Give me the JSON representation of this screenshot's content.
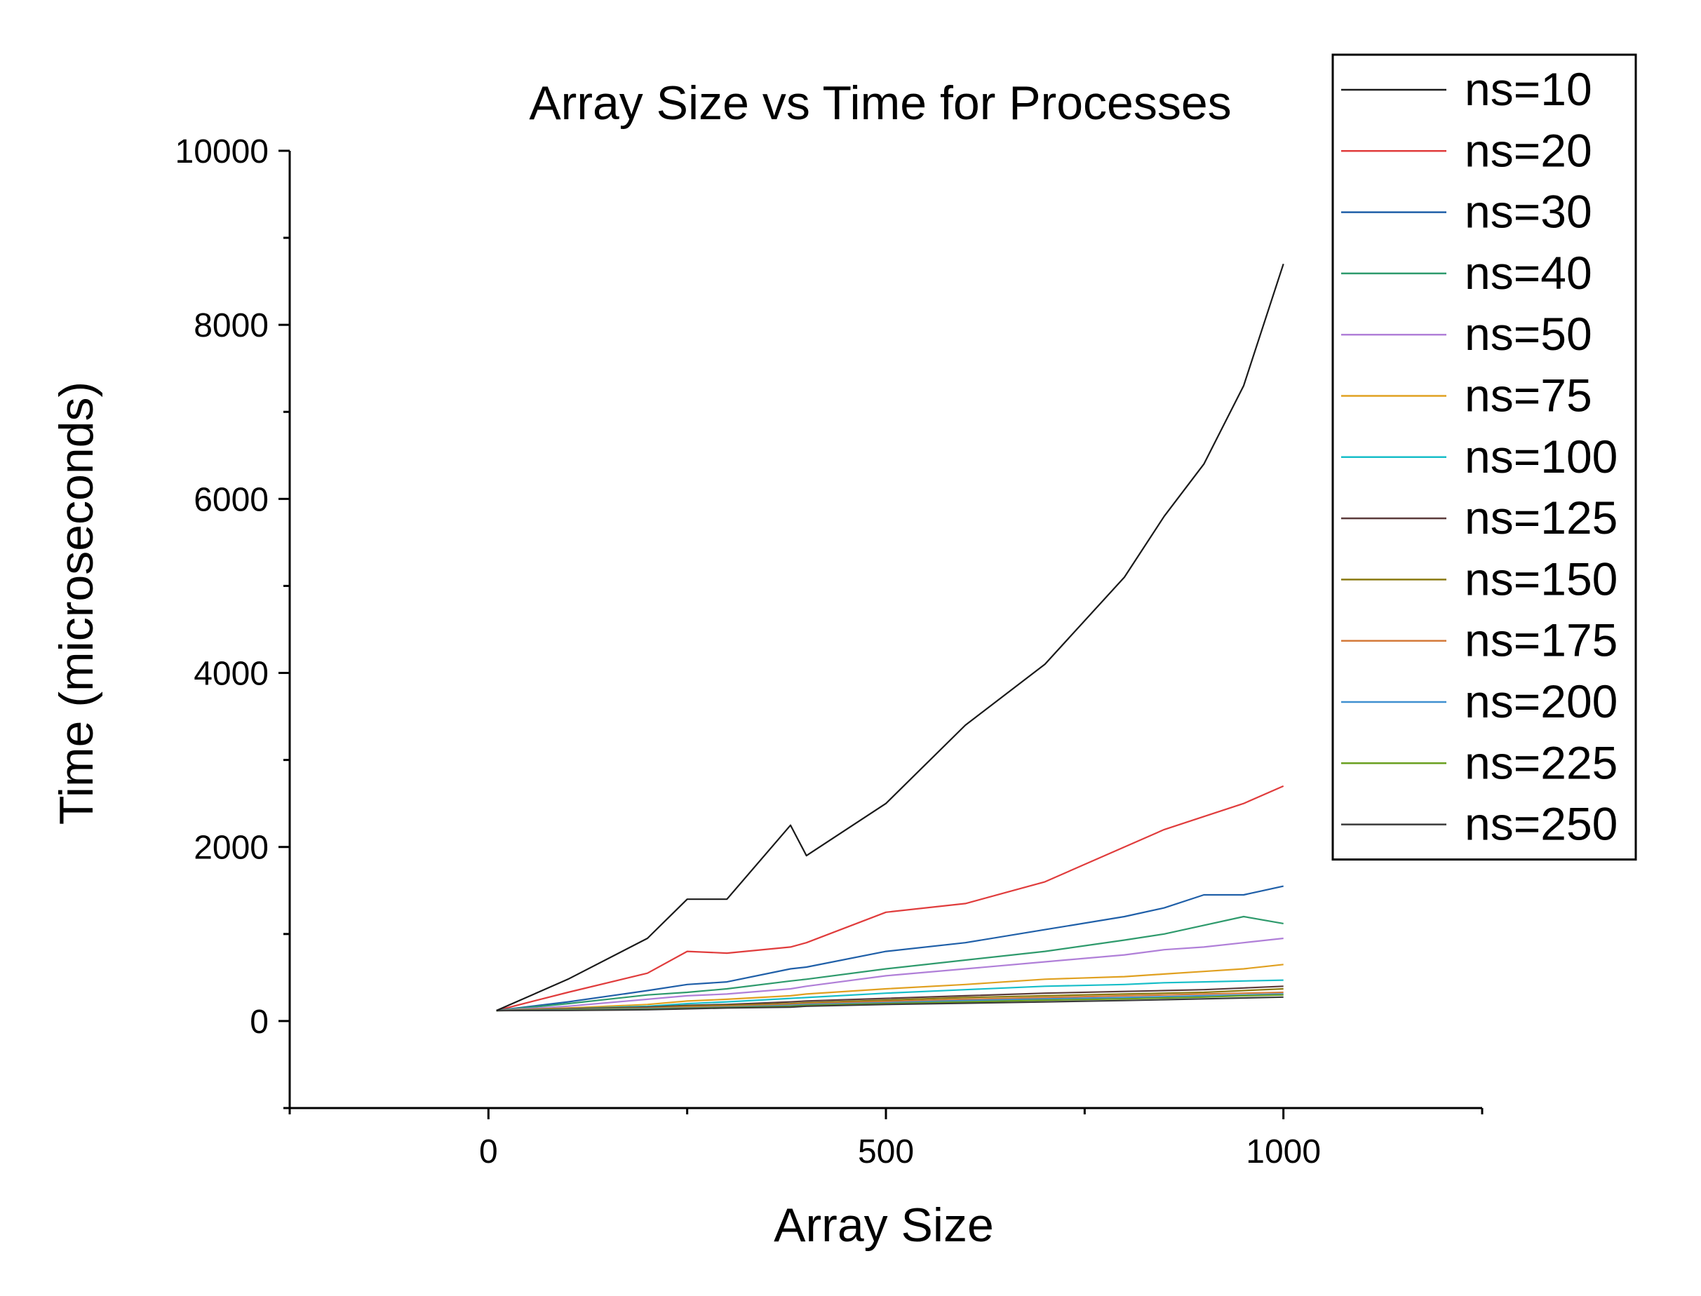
{
  "chart_data": {
    "type": "line",
    "title": "Array Size vs Time for Processes",
    "xlabel": "Array Size",
    "ylabel": "Time (microseconds)",
    "xlim": [
      -250,
      1250
    ],
    "ylim": [
      -1000,
      10000
    ],
    "xticks": [
      0,
      500,
      1000
    ],
    "xtick_labels": [
      "0",
      "500",
      "1000"
    ],
    "yticks": [
      0,
      2000,
      4000,
      6000,
      8000,
      10000
    ],
    "ytick_labels": [
      "0",
      "2000",
      "4000",
      "6000",
      "8000",
      "10000"
    ],
    "grid": false,
    "legend_position": "top-right, outside plot",
    "x": [
      10,
      100,
      200,
      250,
      300,
      380,
      400,
      500,
      600,
      700,
      800,
      850,
      900,
      950,
      1000
    ],
    "series": [
      {
        "name": "ns=10",
        "color": "#1a1a1a",
        "values": [
          120,
          480,
          950,
          1400,
          1400,
          2250,
          1900,
          2500,
          3400,
          4100,
          5100,
          5800,
          6400,
          7300,
          8700
        ]
      },
      {
        "name": "ns=20",
        "color": "#e03c3c",
        "values": [
          120,
          330,
          550,
          800,
          780,
          850,
          900,
          1250,
          1350,
          1600,
          2000,
          2200,
          2350,
          2500,
          2700
        ]
      },
      {
        "name": "ns=30",
        "color": "#1f5fa8",
        "values": [
          120,
          220,
          350,
          420,
          450,
          600,
          620,
          800,
          900,
          1050,
          1200,
          1300,
          1450,
          1450,
          1550
        ]
      },
      {
        "name": "ns=40",
        "color": "#2e9a6c",
        "values": [
          120,
          200,
          300,
          330,
          370,
          460,
          480,
          600,
          700,
          800,
          930,
          1000,
          1100,
          1200,
          1120
        ]
      },
      {
        "name": "ns=50",
        "color": "#b07fd8",
        "values": [
          120,
          170,
          250,
          290,
          310,
          370,
          400,
          520,
          600,
          680,
          760,
          820,
          850,
          900,
          950
        ]
      },
      {
        "name": "ns=75",
        "color": "#e0a020",
        "values": [
          120,
          150,
          190,
          230,
          250,
          290,
          310,
          370,
          420,
          480,
          510,
          540,
          570,
          600,
          650
        ]
      },
      {
        "name": "ns=100",
        "color": "#17bec8",
        "values": [
          120,
          140,
          170,
          200,
          220,
          260,
          270,
          320,
          360,
          400,
          420,
          440,
          450,
          460,
          470
        ]
      },
      {
        "name": "ns=125",
        "color": "#5a3a3a",
        "values": [
          120,
          140,
          160,
          180,
          190,
          220,
          230,
          260,
          290,
          320,
          340,
          350,
          360,
          380,
          400
        ]
      },
      {
        "name": "ns=150",
        "color": "#8a7a10",
        "values": [
          120,
          135,
          150,
          170,
          180,
          200,
          210,
          240,
          270,
          290,
          310,
          320,
          330,
          350,
          370
        ]
      },
      {
        "name": "ns=175",
        "color": "#d47a3a",
        "values": [
          120,
          130,
          145,
          160,
          170,
          190,
          200,
          225,
          250,
          270,
          290,
          300,
          310,
          320,
          330
        ]
      },
      {
        "name": "ns=200",
        "color": "#3f8fd0",
        "values": [
          120,
          130,
          140,
          150,
          160,
          180,
          190,
          210,
          235,
          255,
          270,
          280,
          290,
          300,
          310
        ]
      },
      {
        "name": "ns=225",
        "color": "#6aa020",
        "values": [
          120,
          125,
          135,
          145,
          155,
          170,
          180,
          200,
          220,
          240,
          255,
          265,
          275,
          290,
          300
        ]
      },
      {
        "name": "ns=250",
        "color": "#3a3a3a",
        "values": [
          120,
          122,
          130,
          140,
          150,
          160,
          170,
          190,
          205,
          220,
          235,
          245,
          255,
          265,
          275
        ]
      }
    ]
  }
}
